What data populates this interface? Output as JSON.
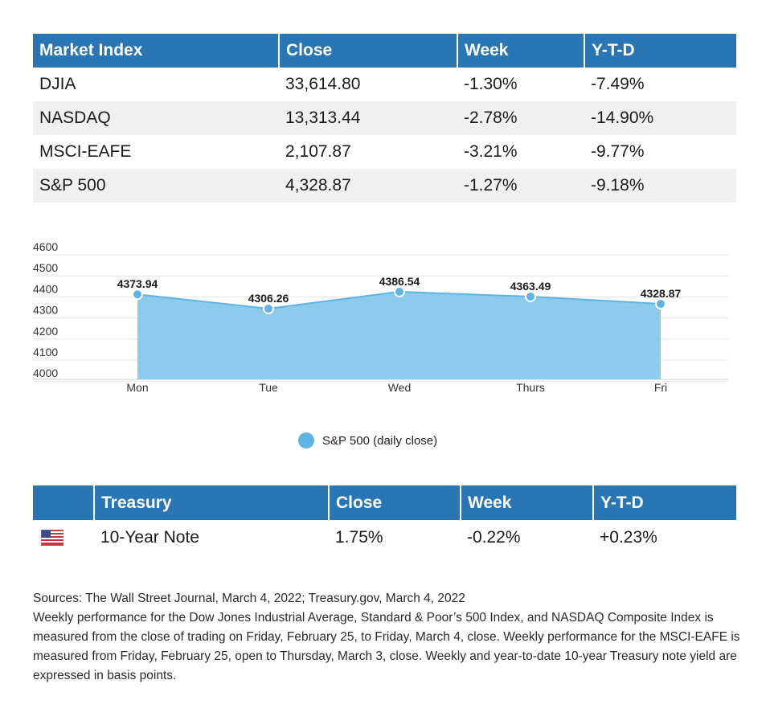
{
  "market_table": {
    "headers": [
      "Market Index",
      "Close",
      "Week",
      "Y-T-D"
    ],
    "rows": [
      [
        "DJIA",
        "33,614.80",
        "-1.30%",
        "-7.49%"
      ],
      [
        "NASDAQ",
        "13,313.44",
        "-2.78%",
        "-14.90%"
      ],
      [
        "MSCI-EAFE",
        "2,107.87",
        "-3.21%",
        "-9.77%"
      ],
      [
        "S&P 500",
        "4,328.87",
        "-1.27%",
        "-9.18%"
      ]
    ]
  },
  "chart_data": {
    "type": "area",
    "categories": [
      "Mon",
      "Tue",
      "Wed",
      "Thurs",
      "Fri"
    ],
    "series": [
      {
        "name": "S&P 500 (daily close)",
        "values": [
          4373.94,
          4306.26,
          4386.54,
          4363.49,
          4328.87
        ],
        "color": "#8ccbeb",
        "marker_color": "#5fb4e5"
      }
    ],
    "data_labels": [
      "4373.94",
      "4306.26",
      "4386.54",
      "4363.49",
      "4328.87"
    ],
    "y_ticks": [
      4000,
      4100,
      4200,
      4300,
      4400,
      4500,
      4600
    ],
    "ylim": [
      3970,
      4600
    ],
    "grid": true,
    "legend_position": "bottom-center"
  },
  "treasury_table": {
    "headers": [
      "",
      "Treasury",
      "Close",
      "Week",
      "Y-T-D"
    ],
    "row": {
      "flag": "us-flag-icon",
      "name": "10-Year Note",
      "close": "1.75%",
      "week": "-0.22%",
      "ytd": "+0.23%"
    }
  },
  "notes": [
    "Sources: The Wall Street Journal, March 4, 2022; Treasury.gov, March 4, 2022",
    "Weekly performance for the Dow Jones Industrial Average, Standard & Poor’s 500 Index, and NASDAQ Composite Index is measured from the close of trading on Friday, February 25, to Friday, March 4, close. Weekly performance for the MSCI-EAFE is measured from Friday, February 25, open to Thursday, March 3, close. Weekly and year-to-date 10-year Treasury note yield are expressed in basis points."
  ],
  "colors": {
    "header_blue": "#2a76b4",
    "row_shade": "#f0f0f0",
    "area_fill": "#8ccbeb",
    "marker": "#5fb4e5"
  }
}
